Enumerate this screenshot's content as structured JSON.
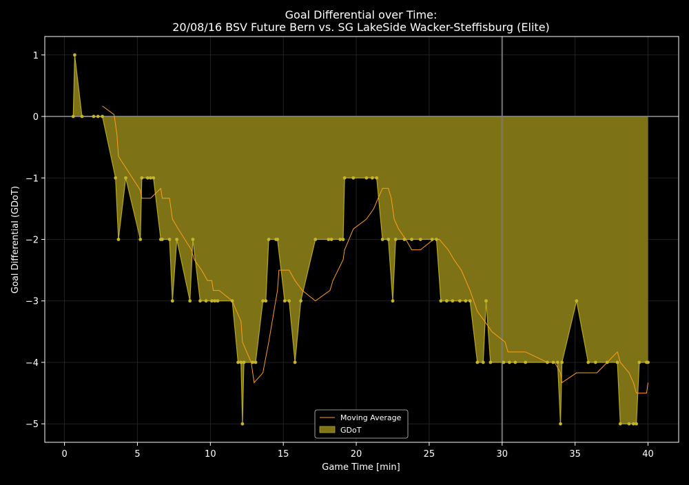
{
  "chart_data": {
    "type": "area",
    "title_line1": "Goal Differential over Time:",
    "title_line2": "20/08/16 BSV Future Bern  vs.  SG LakeSide Wacker-Steffisburg (Elite)",
    "xlabel": "Game Time [min]",
    "ylabel": "Goal Differential (GDoT)",
    "xlim": [
      -1.35,
      42.1
    ],
    "ylim": [
      -5.3,
      1.3
    ],
    "xticks": [
      0,
      5,
      10,
      15,
      20,
      25,
      30,
      35,
      40
    ],
    "yticks": [
      1,
      0,
      -1,
      -2,
      -3,
      -4,
      -5
    ],
    "ytick_labels": [
      "1",
      "0",
      "−1",
      "−2",
      "−3",
      "−4",
      "−5"
    ],
    "halftime_line_x": 30,
    "grid": true,
    "legend_position": "bottom-center",
    "colors": {
      "fill": "#807516",
      "fill_edge": "#b5a624",
      "points": "#c4b52a",
      "moving_average": "#ff9f1a",
      "zero_line": "#8a8a8a",
      "halftime_line": "#7a7a7a"
    },
    "series": [
      {
        "name": "GDoT",
        "x": [
          0.6,
          0.7,
          1.2,
          2.0,
          2.3,
          2.6,
          3.5,
          3.7,
          4.2,
          5.2,
          5.3,
          5.7,
          5.9,
          6.1,
          6.6,
          6.7,
          7.2,
          7.4,
          7.7,
          8.6,
          8.8,
          9.3,
          9.7,
          10.1,
          10.3,
          10.5,
          11.5,
          11.9,
          12.1,
          12.2,
          12.3,
          12.9,
          13.1,
          13.6,
          13.8,
          14.0,
          14.5,
          14.6,
          15.1,
          15.4,
          15.8,
          16.2,
          17.2,
          18.1,
          18.3,
          18.9,
          19.1,
          19.2,
          19.8,
          20.7,
          21.1,
          21.4,
          21.8,
          22.2,
          22.5,
          22.7,
          23.3,
          23.8,
          24.4,
          25.2,
          25.5,
          25.8,
          26.2,
          26.6,
          27.1,
          27.5,
          27.8,
          28.3,
          28.7,
          28.9,
          29.2,
          30.1,
          30.5,
          30.9,
          31.6,
          33.1,
          33.5,
          33.8,
          34.0,
          34.1,
          35.1,
          35.9,
          36.4,
          37.2,
          37.9,
          38.1,
          38.7,
          39.0,
          39.2,
          39.4,
          39.9,
          40.0
        ],
        "values": [
          0,
          1,
          0,
          0,
          0,
          0,
          -1,
          -2,
          -1,
          -2,
          -1,
          -1,
          -1,
          -1,
          -2,
          -2,
          -2,
          -3,
          -2,
          -3,
          -2,
          -3,
          -3,
          -3,
          -3,
          -3,
          -3,
          -4,
          -4,
          -5,
          -4,
          -4,
          -4,
          -3,
          -3,
          -2,
          -2,
          -2,
          -3,
          -3,
          -4,
          -3,
          -2,
          -2,
          -2,
          -2,
          -2,
          -1,
          -1,
          -1,
          -1,
          -1,
          -2,
          -2,
          -3,
          -2,
          -2,
          -2,
          -2,
          -2,
          -2,
          -3,
          -3,
          -3,
          -3,
          -3,
          -3,
          -4,
          -4,
          -3,
          -4,
          -4,
          -4,
          -4,
          -4,
          -4,
          -4,
          -4,
          -5,
          -4,
          -3,
          -4,
          -4,
          -4,
          -4,
          -5,
          -5,
          -5,
          -5,
          -4,
          -4,
          -4
        ]
      },
      {
        "name": "Moving Average",
        "x": [
          2.6,
          3.4,
          3.6,
          3.7,
          5.2,
          5.3,
          5.9,
          6.6,
          6.7,
          7.2,
          7.4,
          7.8,
          8.7,
          8.9,
          9.4,
          9.8,
          10.1,
          10.2,
          10.6,
          11.5,
          11.8,
          12.1,
          12.2,
          12.8,
          13.0,
          13.6,
          14.0,
          14.6,
          14.7,
          15.4,
          15.8,
          16.3,
          17.2,
          18.2,
          18.4,
          19.1,
          19.2,
          19.8,
          20.7,
          21.2,
          21.5,
          21.8,
          22.2,
          22.4,
          22.6,
          22.9,
          23.4,
          23.8,
          24.4,
          25.3,
          25.7,
          26.3,
          26.7,
          27.2,
          27.8,
          28.3,
          28.8,
          29.3,
          30.2,
          30.4,
          31.6,
          33.1,
          33.6,
          34.0,
          34.1,
          35.1,
          35.9,
          36.5,
          37.2,
          37.9,
          38.1,
          38.7,
          39.0,
          39.2,
          39.9,
          40.0
        ],
        "values": [
          0.17,
          0.03,
          -0.3,
          -0.65,
          -1.2,
          -1.33,
          -1.33,
          -1.17,
          -1.33,
          -1.33,
          -1.67,
          -1.83,
          -2.17,
          -2.33,
          -2.5,
          -2.67,
          -2.67,
          -2.83,
          -2.83,
          -3.0,
          -3.17,
          -3.33,
          -3.67,
          -4.0,
          -4.33,
          -4.17,
          -3.67,
          -2.83,
          -2.5,
          -2.5,
          -2.67,
          -2.83,
          -3.0,
          -2.83,
          -2.67,
          -2.33,
          -2.17,
          -1.83,
          -1.67,
          -1.5,
          -1.33,
          -1.17,
          -1.17,
          -1.33,
          -1.67,
          -1.83,
          -2.0,
          -2.17,
          -2.17,
          -2.0,
          -2.0,
          -2.17,
          -2.33,
          -2.5,
          -2.83,
          -3.17,
          -3.33,
          -3.5,
          -3.67,
          -3.83,
          -3.83,
          -4.0,
          -4.0,
          -4.17,
          -4.33,
          -4.17,
          -4.17,
          -4.17,
          -4.0,
          -3.83,
          -4.0,
          -4.17,
          -4.33,
          -4.5,
          -4.5,
          -4.33
        ]
      }
    ]
  }
}
